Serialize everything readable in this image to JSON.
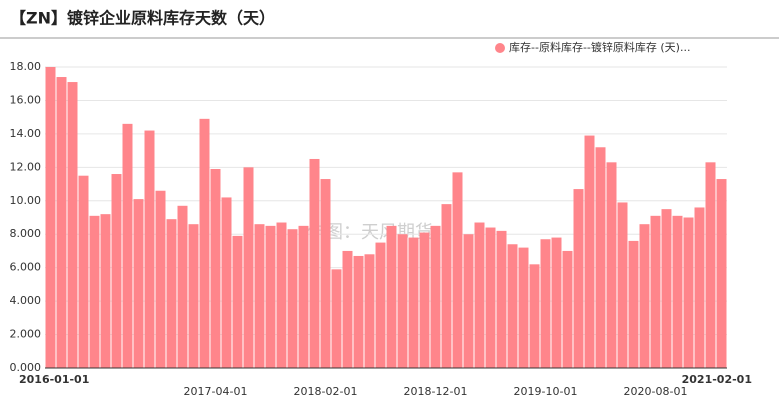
{
  "chart_data": {
    "type": "bar",
    "title": "【ZN】镀锌企业原料库存天数（天）",
    "watermark": "作图：天风期货",
    "legend_position": "top-right",
    "grid": true,
    "categories": [
      "2016-01-01",
      null,
      null,
      null,
      null,
      null,
      null,
      null,
      null,
      null,
      null,
      null,
      null,
      null,
      null,
      "2017-04-01",
      null,
      null,
      null,
      null,
      null,
      null,
      null,
      null,
      null,
      "2018-02-01",
      null,
      null,
      null,
      null,
      null,
      null,
      null,
      null,
      null,
      "2018-12-01",
      null,
      null,
      null,
      null,
      null,
      null,
      null,
      null,
      null,
      "2019-10-01",
      null,
      null,
      null,
      null,
      null,
      null,
      null,
      null,
      null,
      "2020-08-01",
      null,
      null,
      null,
      null,
      null,
      "2021-02-01"
    ],
    "series": [
      {
        "name": "库存--原料库存--镀锌原料库存 (天)...",
        "color": "#ff858b",
        "values": [
          18.0,
          17.4,
          17.1,
          11.5,
          9.1,
          9.2,
          11.6,
          14.6,
          10.1,
          14.2,
          10.6,
          8.9,
          9.7,
          8.6,
          14.9,
          11.9,
          10.2,
          7.9,
          12.0,
          8.6,
          8.5,
          8.7,
          8.3,
          8.5,
          12.5,
          11.3,
          5.9,
          7.0,
          6.7,
          6.8,
          7.5,
          8.5,
          8.0,
          7.8,
          8.1,
          8.5,
          9.8,
          11.7,
          8.0,
          8.7,
          8.4,
          8.2,
          7.4,
          7.2,
          6.2,
          7.7,
          7.8,
          7.0,
          10.7,
          13.9,
          13.2,
          12.3,
          9.9,
          7.6,
          8.6,
          9.1,
          9.5,
          9.1,
          9.0,
          9.6,
          12.3,
          11.3
        ]
      }
    ],
    "ylim": [
      0,
      18
    ],
    "yticks": [
      {
        "value": 0,
        "label": "0.000"
      },
      {
        "value": 2,
        "label": "2.000"
      },
      {
        "value": 4,
        "label": "4.000"
      },
      {
        "value": 6,
        "label": "6.000"
      },
      {
        "value": 8,
        "label": "8.000"
      },
      {
        "value": 10,
        "label": "10.00"
      },
      {
        "value": 12,
        "label": "12.00"
      },
      {
        "value": 14,
        "label": "14.00"
      },
      {
        "value": 16,
        "label": "16.00"
      },
      {
        "value": 18,
        "label": "18.00"
      }
    ]
  }
}
